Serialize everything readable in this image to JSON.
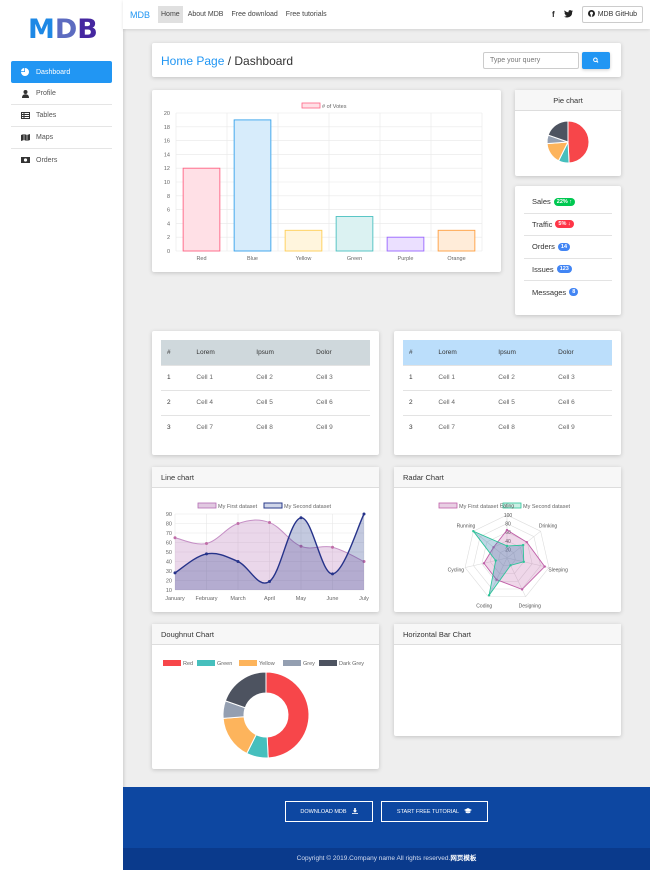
{
  "sidebar": {
    "logo": [
      "M",
      "D",
      "B"
    ],
    "logo_colors": [
      "#1e88e5",
      "#5c6bc0",
      "#4527a0"
    ],
    "items": [
      {
        "label": "Dashboard",
        "icon": "pie-chart-icon",
        "active": true
      },
      {
        "label": "Profile",
        "icon": "user-icon"
      },
      {
        "label": "Tables",
        "icon": "table-icon"
      },
      {
        "label": "Maps",
        "icon": "map-icon"
      },
      {
        "label": "Orders",
        "icon": "money-icon"
      }
    ]
  },
  "topbar": {
    "brand": "MDB",
    "links": [
      "Home",
      "About MDB",
      "Free download",
      "Free tutorials"
    ],
    "social": [
      "f",
      "twitter"
    ],
    "github_label": "MDB GitHub"
  },
  "breadcrumb": {
    "home": "Home Page",
    "separator": " / ",
    "current": "Dashboard"
  },
  "search": {
    "placeholder": "Type your query"
  },
  "pie_card": {
    "title": "Pie chart"
  },
  "stats": [
    {
      "label": "Sales",
      "badge": "22%",
      "arrow": "↑",
      "color": "#00c851"
    },
    {
      "label": "Traffic",
      "badge": "5%",
      "arrow": "↓",
      "color": "#ff3547"
    },
    {
      "label": "Orders",
      "badge": "14",
      "arrow": "",
      "color": "#4285f4"
    },
    {
      "label": "Issues",
      "badge": "123",
      "arrow": "",
      "color": "#4285f4"
    },
    {
      "label": "Messages",
      "badge": "8",
      "arrow": "",
      "color": "#4285f4"
    }
  ],
  "table1": {
    "headers": [
      "#",
      "Lorem",
      "Ipsum",
      "Dolor"
    ],
    "rows": [
      [
        "1",
        "Cell 1",
        "Cell 2",
        "Cell 3"
      ],
      [
        "2",
        "Cell 4",
        "Cell 5",
        "Cell 6"
      ],
      [
        "3",
        "Cell 7",
        "Cell 8",
        "Cell 9"
      ]
    ]
  },
  "table2": {
    "headers": [
      "#",
      "Lorem",
      "Ipsum",
      "Dolor"
    ],
    "rows": [
      [
        "1",
        "Cell 1",
        "Cell 2",
        "Cell 3"
      ],
      [
        "2",
        "Cell 4",
        "Cell 5",
        "Cell 6"
      ],
      [
        "3",
        "Cell 7",
        "Cell 8",
        "Cell 9"
      ]
    ]
  },
  "cards": {
    "line": "Line chart",
    "radar": "Radar Chart",
    "doughnut": "Doughnut Chart",
    "hbar": "Horizontal Bar Chart"
  },
  "footer": {
    "download": "DOWNLOAD MDB",
    "tutorial": "START FREE TUTORIAL",
    "copyright": "Copyright © 2019.Company name All rights reserved.",
    "copyright_link": "网页模板"
  },
  "chart_data": [
    {
      "type": "bar",
      "legend": [
        "# of Votes"
      ],
      "categories": [
        "Red",
        "Blue",
        "Yellow",
        "Green",
        "Purple",
        "Orange"
      ],
      "values": [
        12,
        19,
        3,
        5,
        2,
        3
      ],
      "fills": [
        "#ffe0e6",
        "#d7ecfb",
        "#fff5dd",
        "#dbf2f2",
        "#ebe0ff",
        "#ffecd9"
      ],
      "strokes": [
        "#ff6384",
        "#36a2eb",
        "#ffce56",
        "#4bc0c0",
        "#9966ff",
        "#ff9f40"
      ],
      "ylim": [
        0,
        20
      ],
      "yticks": [
        0,
        2,
        4,
        6,
        8,
        10,
        12,
        14,
        16,
        18,
        20
      ]
    },
    {
      "type": "pie",
      "values": [
        300,
        50,
        100,
        40,
        120
      ],
      "colors": [
        "#f7464a",
        "#46bfbd",
        "#fdb45c",
        "#949fb1",
        "#4d5360"
      ]
    },
    {
      "type": "line",
      "categories": [
        "January",
        "February",
        "March",
        "April",
        "May",
        "June",
        "July"
      ],
      "series": [
        {
          "name": "My First dataset",
          "values": [
            65,
            59,
            80,
            81,
            56,
            55,
            40
          ]
        },
        {
          "name": "My Second dataset",
          "values": [
            28,
            48,
            40,
            19,
            86,
            27,
            90
          ]
        }
      ],
      "ylim": [
        10,
        90
      ],
      "yticks": [
        10,
        20,
        30,
        40,
        50,
        60,
        70,
        80,
        90
      ]
    },
    {
      "type": "radar",
      "categories": [
        "Eating",
        "Drinking",
        "Sleeping",
        "Designing",
        "Coding",
        "Cycling",
        "Running"
      ],
      "series": [
        {
          "name": "My First dataset",
          "values": [
            65,
            59,
            90,
            81,
            56,
            55,
            40
          ]
        },
        {
          "name": "My Second dataset",
          "values": [
            28,
            48,
            40,
            19,
            96,
            27,
            100
          ]
        }
      ],
      "ticks": [
        20,
        40,
        60,
        80,
        100
      ]
    },
    {
      "type": "pie",
      "variant": "doughnut",
      "legend": [
        "Red",
        "Green",
        "Yellow",
        "Grey",
        "Dark Grey"
      ],
      "values": [
        300,
        50,
        100,
        40,
        120
      ],
      "colors": [
        "#f7464a",
        "#46bfbd",
        "#fdb45c",
        "#949fb1",
        "#4d5360"
      ]
    }
  ]
}
